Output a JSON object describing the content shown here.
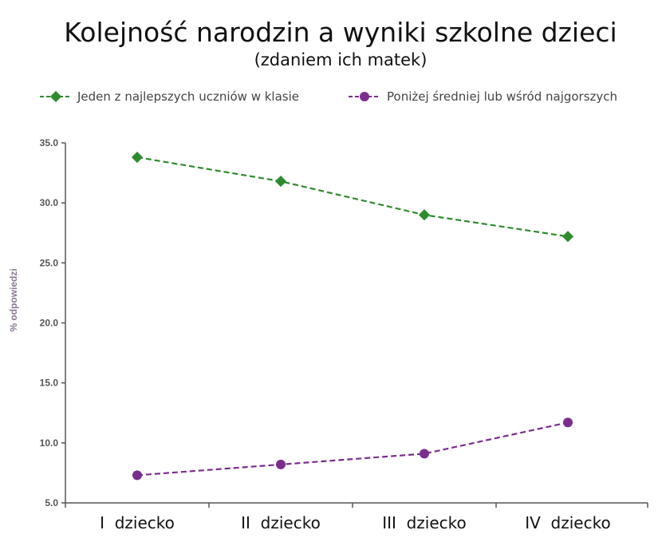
{
  "chart_data": {
    "type": "line",
    "title": "Kolejność narodzin a wyniki szkolne dzieci",
    "subtitle": "(zdaniem ich matek)",
    "ylabel": "% odpowiedzi",
    "xlabel": "",
    "categories": [
      "I  dziecko",
      "II  dziecko",
      "III  dziecko",
      "IV  dziecko"
    ],
    "ylim": [
      5.0,
      35.0
    ],
    "yticks": [
      "35.0",
      "30.0",
      "25.0",
      "20.0",
      "15.0",
      "10.0",
      "5.0"
    ],
    "grid": false,
    "legend_position": "top",
    "series": [
      {
        "name": "Jeden z najlepszych uczniów w klasie",
        "values": [
          33.8,
          31.8,
          29.0,
          27.2
        ],
        "color": "#2e8b2e",
        "marker": "diamond",
        "line_style": "dashed"
      },
      {
        "name": "Poniżej średniej lub wśród najgorszych",
        "values": [
          7.3,
          8.2,
          9.1,
          11.7
        ],
        "color": "#7b2d8e",
        "marker": "circle",
        "line_style": "dashed"
      }
    ]
  }
}
